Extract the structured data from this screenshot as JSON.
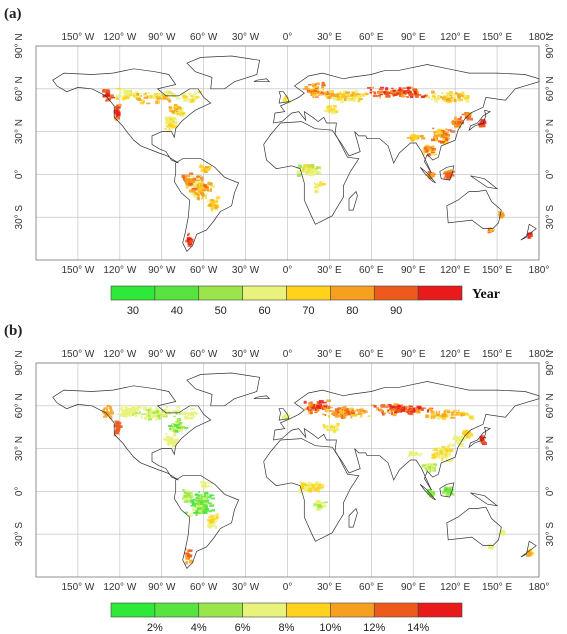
{
  "colors": {
    "c1": "#2ee83a",
    "c2": "#57e43f",
    "c3": "#9ae64a",
    "c4": "#e9f27a",
    "c5": "#ffd21c",
    "c6": "#f7a020",
    "c7": "#ee5a1c",
    "c8": "#e81a1a",
    "land_outline": "#333333",
    "grid": "#bdbdbd"
  },
  "map": {
    "lon_ticks_top": [
      "150° W",
      "120° W",
      "90° W",
      "60° W",
      "30° W",
      "0°",
      "30° E",
      "60° E",
      "90° E",
      "120° E",
      "150° E",
      "180°"
    ],
    "lon_ticks_bottom": [
      "150° W",
      "120° W",
      "90° W",
      "60° W",
      "30° W",
      "0°",
      "30° E",
      "60° E",
      "90° E",
      "120° E",
      "150° E",
      "180°"
    ],
    "lat_ticks": [
      "90° N",
      "60° N",
      "30° N",
      "0°",
      "30° S"
    ]
  },
  "panel_a": {
    "label": "(a)",
    "colorbar_labels": [
      "30",
      "40",
      "50",
      "60",
      "70",
      "80",
      "90"
    ],
    "unit": "Year"
  },
  "panel_b": {
    "label": "(b)",
    "colorbar_labels": [
      "2%",
      "4%",
      "6%",
      "8%",
      "10%",
      "12%",
      "14%"
    ]
  }
}
